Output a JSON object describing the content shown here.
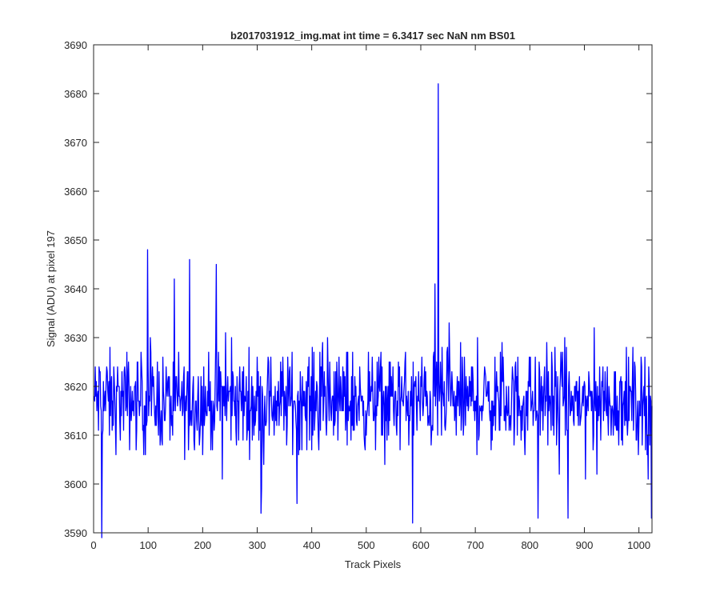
{
  "chart_data": {
    "type": "line",
    "title": "b2017031912_img.mat int time = 6.3417 sec  NaN nm BS01",
    "xlabel": "Track Pixels",
    "ylabel": "Signal (ADU) at pixel 197",
    "xlim": [
      0,
      1024
    ],
    "ylim": [
      3590,
      3690
    ],
    "xticks": [
      0,
      100,
      200,
      300,
      400,
      500,
      600,
      700,
      800,
      900,
      1000
    ],
    "yticks": [
      3590,
      3600,
      3610,
      3620,
      3630,
      3640,
      3650,
      3660,
      3670,
      3680,
      3690
    ],
    "grid": false,
    "colors": {
      "series": "#0000ff",
      "axes": "#262626",
      "background": "#ffffff"
    },
    "series": [
      {
        "x_start": 1,
        "x_step": 1,
        "baseline": 3617,
        "noise_amplitude": 8,
        "peaks": [
          {
            "x": 15,
            "y": 3589
          },
          {
            "x": 99,
            "y": 3648
          },
          {
            "x": 176,
            "y": 3646
          },
          {
            "x": 225,
            "y": 3645
          },
          {
            "x": 307,
            "y": 3594
          },
          {
            "x": 373,
            "y": 3596
          },
          {
            "x": 585,
            "y": 3592
          },
          {
            "x": 626,
            "y": 3641
          },
          {
            "x": 632,
            "y": 3682
          },
          {
            "x": 815,
            "y": 3593
          },
          {
            "x": 870,
            "y": 3593
          },
          {
            "x": 1023,
            "y": 3593
          }
        ]
      }
    ]
  }
}
